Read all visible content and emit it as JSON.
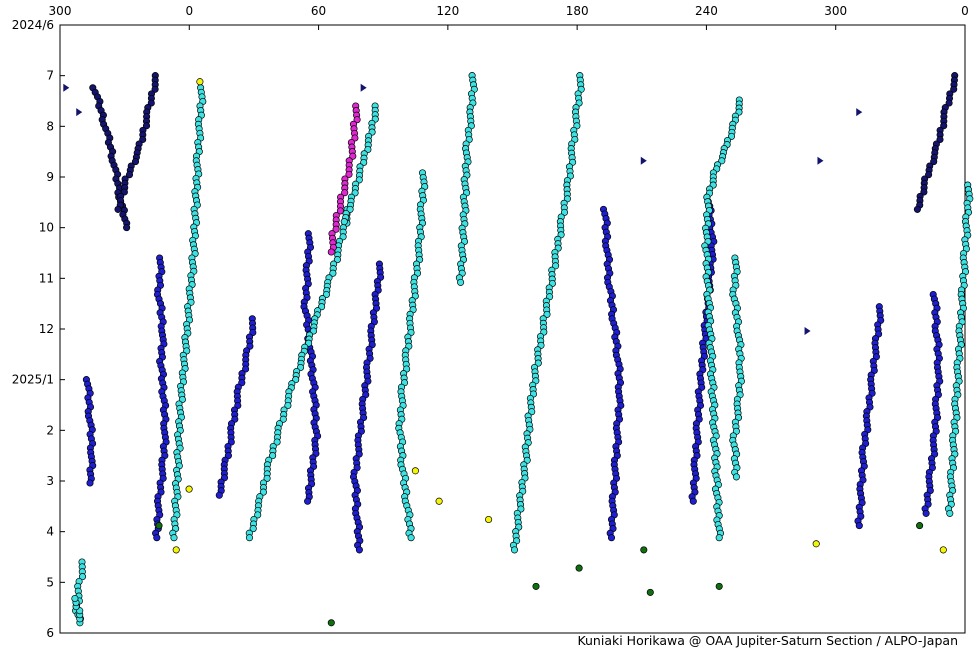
{
  "chart_data": {
    "type": "scatter",
    "title": "",
    "xlabel": "",
    "ylabel": "",
    "credit": "Kuniaki Horikawa @ OAA Jupiter-Saturn Section / ALPO-Japan",
    "x_ticks": [
      "300",
      "0",
      "60",
      "120",
      "180",
      "240",
      "300",
      "0"
    ],
    "y_ticks": [
      "2024/6",
      "7",
      "8",
      "9",
      "10",
      "11",
      "12",
      "2025/1",
      "2",
      "3",
      "4",
      "5",
      "6"
    ],
    "x_axis": "System II longitude, 270 to 360 (ticks printed 300, 0, 60, 120, 180, 240, 300, 0)",
    "y_range": [
      "2024/6",
      "2025/6"
    ],
    "grid": false,
    "legend": "none",
    "colors": {
      "navy": "#14146e",
      "blue": "#1f1fd2",
      "cyan": "#3ee2e2",
      "magenta": "#e028d2",
      "green": "#0f6e0f",
      "yellow": "#f5f50a",
      "marker_edge": "#000000"
    },
    "series": [
      {
        "color": "navy",
        "marker": "circle",
        "points": [
          [
            -45,
            2024.52
          ],
          [
            -40,
            2024.58
          ],
          [
            -36,
            2024.64
          ],
          [
            -33,
            2024.7
          ],
          [
            -30,
            2024.75
          ]
        ]
      },
      {
        "color": "navy",
        "marker": "circle",
        "points": [
          [
            -16,
            2024.5
          ],
          [
            -20,
            2024.56
          ],
          [
            -24,
            2024.62
          ],
          [
            -30,
            2024.67
          ],
          [
            -34,
            2024.72
          ]
        ]
      },
      {
        "color": "navy",
        "marker": "circle",
        "points": [
          [
            355,
            2024.5
          ],
          [
            350,
            2024.56
          ],
          [
            346,
            2024.62
          ],
          [
            341,
            2024.67
          ],
          [
            337,
            2024.72
          ]
        ]
      },
      {
        "color": "blue",
        "marker": "circle",
        "points": [
          [
            -14,
            2024.8
          ],
          [
            -15,
            2024.86
          ],
          [
            -13,
            2024.92
          ],
          [
            -14,
            2024.97
          ],
          [
            -13,
            2025.02
          ],
          [
            -12,
            2025.08
          ],
          [
            -13,
            2025.14
          ],
          [
            -15,
            2025.2
          ],
          [
            -16,
            2025.26
          ]
        ]
      },
      {
        "color": "blue",
        "marker": "circle",
        "points": [
          [
            -48,
            2025.0
          ],
          [
            -47,
            2025.06
          ],
          [
            -46,
            2025.12
          ],
          [
            -47,
            2025.17
          ]
        ]
      },
      {
        "color": "blue",
        "marker": "circle",
        "points": [
          [
            29,
            2024.9
          ],
          [
            26,
            2024.96
          ],
          [
            22,
            2025.02
          ],
          [
            19,
            2025.08
          ],
          [
            16,
            2025.14
          ],
          [
            13,
            2025.19
          ]
        ]
      },
      {
        "color": "blue",
        "marker": "circle",
        "points": [
          [
            55,
            2024.76
          ],
          [
            54,
            2024.82
          ],
          [
            53,
            2024.88
          ],
          [
            55,
            2024.94
          ],
          [
            57,
            2025.02
          ],
          [
            58,
            2025.1
          ],
          [
            56,
            2025.15
          ],
          [
            54,
            2025.2
          ]
        ]
      },
      {
        "color": "blue",
        "marker": "circle",
        "points": [
          [
            88,
            2024.81
          ],
          [
            86,
            2024.86
          ],
          [
            84,
            2024.92
          ],
          [
            82,
            2024.98
          ],
          [
            80,
            2025.04
          ],
          [
            78,
            2025.1
          ],
          [
            76,
            2025.16
          ],
          [
            77,
            2025.22
          ],
          [
            78,
            2025.28
          ]
        ]
      },
      {
        "color": "blue",
        "marker": "circle",
        "points": [
          [
            192,
            2024.72
          ],
          [
            193,
            2024.78
          ],
          [
            194,
            2024.84
          ],
          [
            196,
            2024.9
          ],
          [
            198,
            2024.96
          ],
          [
            199,
            2025.02
          ],
          [
            198,
            2025.08
          ],
          [
            197,
            2025.14
          ],
          [
            196,
            2025.2
          ],
          [
            195,
            2025.26
          ]
        ]
      },
      {
        "color": "blue",
        "marker": "circle",
        "points": [
          [
            240,
            2024.7
          ],
          [
            242,
            2024.78
          ],
          [
            240,
            2024.86
          ],
          [
            238,
            2024.94
          ],
          [
            236,
            2025.02
          ],
          [
            235,
            2025.08
          ],
          [
            234,
            2025.14
          ],
          [
            233,
            2025.2
          ]
        ]
      },
      {
        "color": "blue",
        "marker": "circle",
        "points": [
          [
            320,
            2024.88
          ],
          [
            318,
            2024.94
          ],
          [
            316,
            2025.0
          ],
          [
            314,
            2025.06
          ],
          [
            312,
            2025.12
          ],
          [
            311,
            2025.18
          ],
          [
            310,
            2025.24
          ]
        ]
      },
      {
        "color": "blue",
        "marker": "circle",
        "points": [
          [
            345,
            2024.86
          ],
          [
            346,
            2024.92
          ],
          [
            347,
            2024.98
          ],
          [
            346,
            2025.04
          ],
          [
            345,
            2025.1
          ],
          [
            343,
            2025.16
          ],
          [
            341,
            2025.22
          ]
        ]
      },
      {
        "color": "cyan",
        "marker": "circle",
        "points": [
          [
            5,
            2024.52
          ],
          [
            4,
            2024.58
          ],
          [
            3,
            2024.64
          ],
          [
            2,
            2024.72
          ],
          [
            1,
            2024.8
          ],
          [
            -1,
            2024.88
          ],
          [
            -3,
            2024.96
          ],
          [
            -5,
            2025.04
          ],
          [
            -6,
            2025.12
          ],
          [
            -7,
            2025.2
          ],
          [
            -8,
            2025.26
          ]
        ]
      },
      {
        "color": "cyan",
        "marker": "circle",
        "points": [
          [
            73,
            2024.72
          ],
          [
            69,
            2024.78
          ],
          [
            64,
            2024.84
          ],
          [
            58,
            2024.9
          ],
          [
            52,
            2024.96
          ],
          [
            46,
            2025.02
          ],
          [
            41,
            2025.08
          ],
          [
            36,
            2025.14
          ],
          [
            32,
            2025.2
          ],
          [
            27,
            2025.26
          ]
        ]
      },
      {
        "color": "cyan",
        "marker": "circle",
        "points": [
          [
            86,
            2024.55
          ],
          [
            83,
            2024.6
          ],
          [
            79,
            2024.65
          ],
          [
            75,
            2024.7
          ],
          [
            71,
            2024.74
          ]
        ]
      },
      {
        "color": "cyan",
        "marker": "circle",
        "points": [
          [
            131,
            2024.5
          ],
          [
            130,
            2024.56
          ],
          [
            128,
            2024.62
          ],
          [
            127,
            2024.7
          ],
          [
            126,
            2024.78
          ],
          [
            125,
            2024.84
          ]
        ]
      },
      {
        "color": "cyan",
        "marker": "circle",
        "points": [
          [
            108,
            2024.66
          ],
          [
            107,
            2024.72
          ],
          [
            106,
            2024.78
          ],
          [
            104,
            2024.84
          ],
          [
            102,
            2024.9
          ],
          [
            100,
            2024.96
          ],
          [
            98,
            2025.02
          ],
          [
            97,
            2025.08
          ],
          [
            98,
            2025.14
          ],
          [
            100,
            2025.2
          ],
          [
            102,
            2025.26
          ]
        ]
      },
      {
        "color": "cyan",
        "marker": "circle",
        "points": [
          [
            181,
            2024.5
          ],
          [
            179,
            2024.56
          ],
          [
            177,
            2024.62
          ],
          [
            175,
            2024.68
          ],
          [
            172,
            2024.74
          ],
          [
            168,
            2024.82
          ],
          [
            164,
            2024.9
          ],
          [
            160,
            2024.98
          ],
          [
            157,
            2025.06
          ],
          [
            155,
            2025.14
          ],
          [
            152,
            2025.22
          ],
          [
            150,
            2025.28
          ]
        ]
      },
      {
        "color": "cyan",
        "marker": "circle",
        "points": [
          [
            255,
            2024.54
          ],
          [
            252,
            2024.58
          ],
          [
            248,
            2024.62
          ],
          [
            243,
            2024.66
          ],
          [
            240,
            2024.7
          ],
          [
            239,
            2024.78
          ],
          [
            240,
            2024.86
          ],
          [
            241,
            2024.94
          ],
          [
            242,
            2025.02
          ],
          [
            243,
            2025.1
          ],
          [
            244,
            2025.18
          ],
          [
            245,
            2025.26
          ]
        ]
      },
      {
        "color": "cyan",
        "marker": "circle",
        "points": [
          [
            253,
            2024.8
          ],
          [
            252,
            2024.86
          ],
          [
            254,
            2024.92
          ],
          [
            255,
            2024.98
          ],
          [
            254,
            2025.04
          ],
          [
            252,
            2025.1
          ],
          [
            253,
            2025.16
          ]
        ]
      },
      {
        "color": "cyan",
        "marker": "circle",
        "points": [
          [
            361,
            2024.68
          ],
          [
            360,
            2024.74
          ],
          [
            359,
            2024.8
          ],
          [
            358,
            2024.86
          ],
          [
            357,
            2024.92
          ],
          [
            356,
            2024.98
          ],
          [
            355,
            2025.04
          ],
          [
            354,
            2025.1
          ],
          [
            353,
            2025.16
          ],
          [
            352,
            2025.22
          ]
        ]
      },
      {
        "color": "cyan",
        "marker": "circle",
        "points": [
          [
            -50,
            2025.3
          ],
          [
            -52,
            2025.34
          ],
          [
            -53,
            2025.38
          ],
          [
            -51,
            2025.4
          ],
          [
            -54,
            2025.36
          ]
        ]
      },
      {
        "color": "magenta",
        "marker": "circle",
        "points": [
          [
            77,
            2024.55
          ],
          [
            76,
            2024.58
          ],
          [
            75,
            2024.61
          ],
          [
            74,
            2024.64
          ],
          [
            72,
            2024.67
          ],
          [
            70,
            2024.7
          ],
          [
            68,
            2024.73
          ],
          [
            66,
            2024.76
          ],
          [
            65,
            2024.79
          ]
        ]
      },
      {
        "color": "green",
        "marker": "circle",
        "points": [
          [
            -15,
            2025.24
          ],
          [
            65,
            2025.4
          ],
          [
            160,
            2025.34
          ],
          [
            180,
            2025.31
          ],
          [
            210,
            2025.28
          ],
          [
            213,
            2025.35
          ],
          [
            245,
            2025.34
          ],
          [
            338,
            2025.24
          ]
        ]
      },
      {
        "color": "yellow",
        "marker": "circle",
        "points": [
          [
            4,
            2024.51
          ],
          [
            -1,
            2025.18
          ],
          [
            -7,
            2025.28
          ],
          [
            104,
            2025.15
          ],
          [
            115,
            2025.2
          ],
          [
            138,
            2025.23
          ],
          [
            290,
            2025.27
          ],
          [
            349,
            2025.28
          ]
        ]
      },
      {
        "color": "navy",
        "marker": "triangle",
        "points": [
          [
            -58,
            2024.52
          ],
          [
            -52,
            2024.56
          ],
          [
            80,
            2024.52
          ],
          [
            210,
            2024.64
          ],
          [
            292,
            2024.64
          ],
          [
            310,
            2024.56
          ],
          [
            286,
            2024.92
          ]
        ]
      }
    ]
  }
}
